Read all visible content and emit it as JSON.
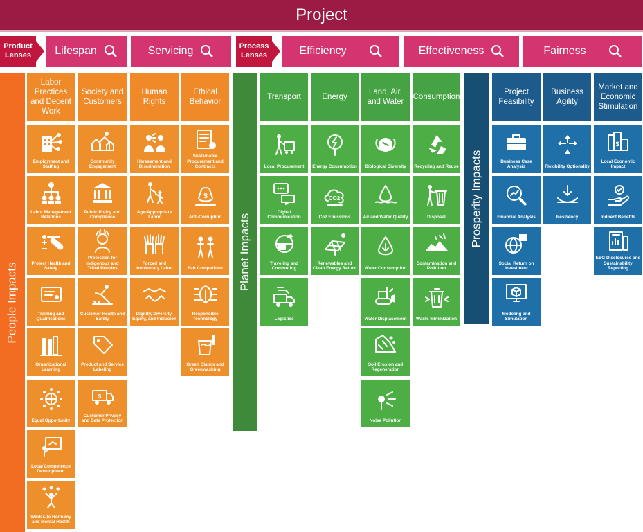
{
  "title": "Project",
  "lens_groups": {
    "product": {
      "tag": "Product Lenses",
      "lenses": [
        "Lifespan",
        "Servicing"
      ]
    },
    "process": {
      "tag": "Process Lenses",
      "lenses": [
        "Efficiency",
        "Effectiveness",
        "Fairness"
      ]
    }
  },
  "impacts": {
    "people": "People Impacts",
    "planet": "Planet Impacts",
    "prosperity": "Prosperity Impacts"
  },
  "categories": [
    {
      "label": "Labor Practices and Decent Work",
      "color": "#f08a28",
      "items": [
        {
          "label": "Employment and Staffing",
          "icon": "people-network-icon"
        },
        {
          "label": "Labor Management Relations",
          "icon": "org-chart-icon"
        },
        {
          "label": "Project Health and Safety",
          "icon": "safety-icon"
        },
        {
          "label": "Training and Qualifications",
          "icon": "certificate-icon"
        },
        {
          "label": "Organizational Learning",
          "icon": "books-icon"
        },
        {
          "label": "Equal Opportunity",
          "icon": "globe-people-icon"
        },
        {
          "label": "Local Competence Development",
          "icon": "teacher-board-icon"
        },
        {
          "label": "Work Life Harmony and Mental Health",
          "icon": "juggler-icon"
        }
      ]
    },
    {
      "label": "Society and Customers",
      "color": "#f08a28",
      "items": [
        {
          "label": "Community Engagement",
          "icon": "houses-icon"
        },
        {
          "label": "Public Policy and Compliance",
          "icon": "government-building-icon"
        },
        {
          "label": "Protection for Indigenous and Tribal Peoples",
          "icon": "indigenous-person-icon"
        },
        {
          "label": "Customer Health and Safety",
          "icon": "slip-fall-icon"
        },
        {
          "label": "Product and Service Labeling",
          "icon": "price-tag-icon"
        },
        {
          "label": "Customer Privacy and Data Protection",
          "icon": "data-truck-icon"
        }
      ]
    },
    {
      "label": "Human Rights",
      "color": "#f08a28",
      "items": [
        {
          "label": "Harassment and Discrimination",
          "icon": "shouting-icon"
        },
        {
          "label": "Age-Appropriate Labor",
          "icon": "child-labor-icon"
        },
        {
          "label": "Forced and Involuntary Labor",
          "icon": "raised-hands-icon"
        },
        {
          "label": "Dignity, Diversity, Equity, and Inclusion",
          "icon": "handshake-icon"
        }
      ]
    },
    {
      "label": "Ethical Behavior",
      "color": "#f08a28",
      "items": [
        {
          "label": "Sustainable Procurement and Contracts",
          "icon": "contract-icon"
        },
        {
          "label": "Anti-Corruption",
          "icon": "money-bag-hand-icon"
        },
        {
          "label": "Fair Competition",
          "icon": "two-people-icon"
        },
        {
          "label": "Responsible Technology",
          "icon": "circuit-leaf-icon"
        },
        {
          "label": "Green Claims and Greenwashing",
          "icon": "paint-bucket-icon"
        }
      ]
    },
    {
      "label": "Transport",
      "color": "#46a343",
      "items": [
        {
          "label": "Local Procurement",
          "icon": "cart-person-icon"
        },
        {
          "label": "Digital Communication",
          "icon": "chat-bubbles-icon"
        },
        {
          "label": "Traveling and Commuting",
          "icon": "travel-icon"
        },
        {
          "label": "Logistics",
          "icon": "delivery-truck-icon"
        }
      ]
    },
    {
      "label": "Energy",
      "color": "#46a343",
      "items": [
        {
          "label": "Energy Consumption",
          "icon": "energy-plug-icon"
        },
        {
          "label": "Co2 Emissions",
          "icon": "co2-cloud-icon"
        },
        {
          "label": "Renewables and Clean Energy Return",
          "icon": "solar-panel-icon"
        }
      ]
    },
    {
      "label": "Land, Air, and Water",
      "color": "#46a343",
      "items": [
        {
          "label": "Biological Diversity",
          "icon": "earth-leaves-icon"
        },
        {
          "label": "Air and Water Quality",
          "icon": "water-waves-icon"
        },
        {
          "label": "Water Consumption",
          "icon": "water-drop-icon"
        },
        {
          "label": "Water Displacement",
          "icon": "bulldozer-icon"
        },
        {
          "label": "Soil Erosion and Regeneration",
          "icon": "erosion-icon"
        },
        {
          "label": "Noise Pollution",
          "icon": "noise-icon"
        }
      ]
    },
    {
      "label": "Consumption",
      "color": "#46a343",
      "items": [
        {
          "label": "Recycling and Reuse",
          "icon": "recycle-icon"
        },
        {
          "label": "Disposal",
          "icon": "trash-bin-icon"
        },
        {
          "label": "Contamination and Pollution",
          "icon": "landfill-icon"
        },
        {
          "label": "Waste Minimization",
          "icon": "compress-bin-icon"
        }
      ]
    },
    {
      "label": "Project Feasibility",
      "color": "#1c5b8c",
      "items": [
        {
          "label": "Business Case Analysis",
          "icon": "briefcase-icon"
        },
        {
          "label": "Financial Analysis",
          "icon": "magnifier-chart-icon"
        },
        {
          "label": "Social Return on Investment",
          "icon": "globe-chart-icon"
        },
        {
          "label": "Modeling and Simulation",
          "icon": "cube-monitor-icon"
        }
      ]
    },
    {
      "label": "Business Agility",
      "color": "#1c5b8c",
      "items": [
        {
          "label": "Flexibility Optionality",
          "icon": "direction-arrows-icon"
        },
        {
          "label": "Resiliency",
          "icon": "resilience-arrow-icon"
        }
      ]
    },
    {
      "label": "Market and Economic Stimulation",
      "color": "#1c5b8c",
      "items": [
        {
          "label": "Local Economic Impact",
          "icon": "city-money-icon"
        },
        {
          "label": "Indirect Benefits",
          "icon": "hand-badge-icon"
        },
        {
          "label": "ESG Disclosures and Sustainability Reporting",
          "icon": "report-icon"
        }
      ]
    }
  ]
}
